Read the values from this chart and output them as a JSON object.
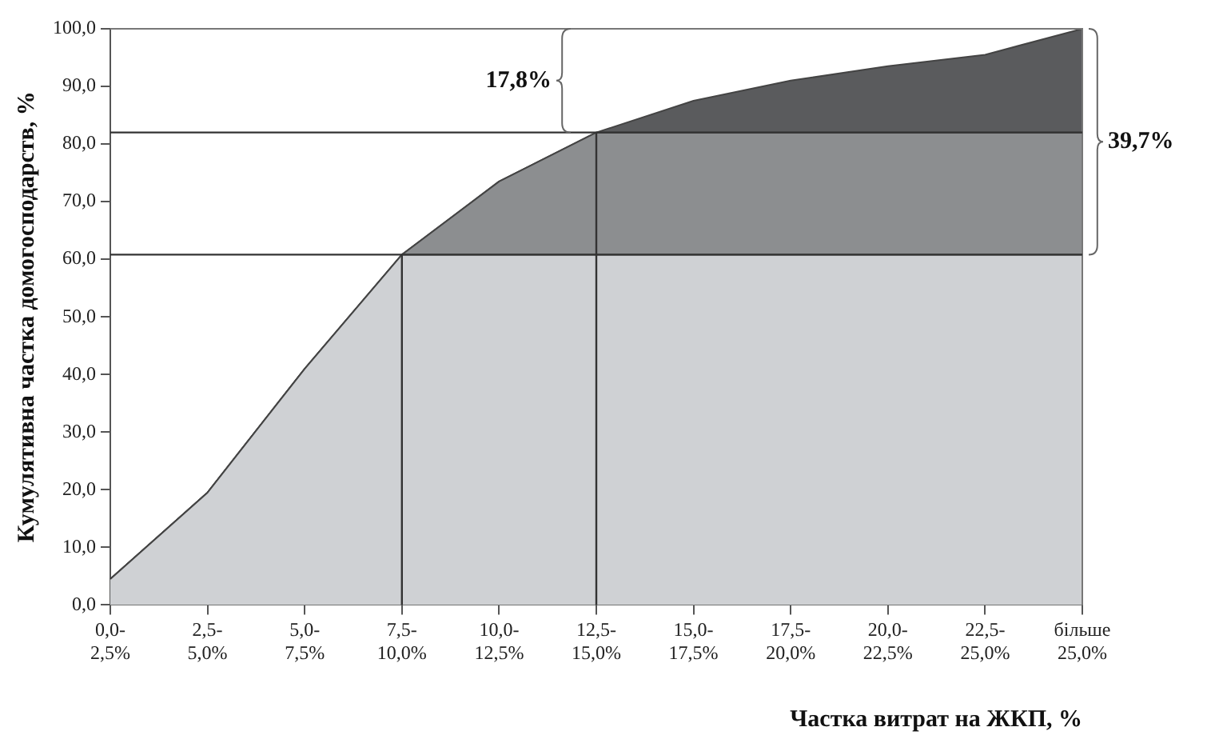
{
  "chart_data": {
    "type": "area",
    "stacked": true,
    "xlabel": "Частка витрат на ЖКП, %",
    "ylabel": "Кумулятивна частка домогосподарств, %",
    "categories": [
      "0,0-2,5%",
      "2,5-5,0%",
      "5,0-7,5%",
      "7,5-10,0%",
      "10,0-12,5%",
      "12,5-15,0%",
      "15,0-17,5%",
      "17,5-20,0%",
      "20,0-22,5%",
      "22,5-25,0%",
      "більше 25,0%"
    ],
    "series": [
      {
        "color": "#cfd1d4",
        "values": [
          4.5,
          19.5,
          41,
          60.8,
          60.8,
          60.8,
          60.8,
          60.8,
          60.8,
          60.8,
          60.8
        ]
      },
      {
        "color": "#8c8e90",
        "values": [
          0,
          0,
          0,
          0,
          12.7,
          21.2,
          21.2,
          21.2,
          21.2,
          21.2,
          21.2
        ]
      },
      {
        "color": "#5a5b5d",
        "values": [
          0,
          0,
          0,
          0,
          0,
          0,
          5.5,
          9,
          11.5,
          13.5,
          18
        ]
      }
    ],
    "ylim": [
      0,
      100
    ],
    "yticks": [
      {
        "value": 0,
        "label": "0,0"
      },
      {
        "value": 10,
        "label": "10,0"
      },
      {
        "value": 20,
        "label": "20,0"
      },
      {
        "value": 30,
        "label": "30,0"
      },
      {
        "value": 40,
        "label": "40,0"
      },
      {
        "value": 50,
        "label": "50,0"
      },
      {
        "value": 60,
        "label": "60,0"
      },
      {
        "value": 70,
        "label": "70,0"
      },
      {
        "value": 80,
        "label": "80,0"
      },
      {
        "value": 90,
        "label": "90,0"
      },
      {
        "value": 100,
        "label": "100,0"
      }
    ],
    "ref_lines": [
      {
        "axis": "y",
        "value": 60.8,
        "color": "#333333"
      },
      {
        "axis": "y",
        "value": 82,
        "color": "#333333"
      },
      {
        "axis": "x",
        "value": "7,5-10,0%",
        "color": "#333333"
      },
      {
        "axis": "x",
        "value": "12,5-15,0%",
        "color": "#333333"
      }
    ],
    "annotations": [
      "17,8%",
      "39,7%"
    ],
    "grid": false,
    "legend": false
  }
}
